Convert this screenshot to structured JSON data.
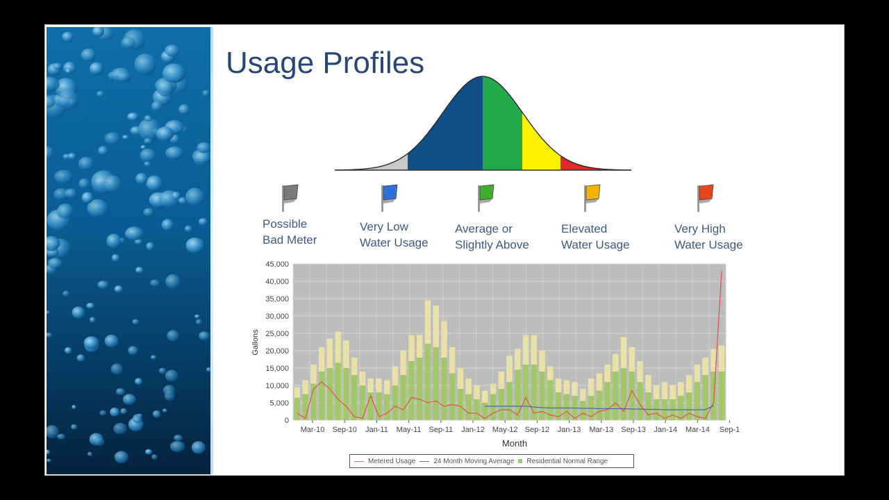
{
  "slide": {
    "title": "Usage Profiles",
    "flags": [
      {
        "line1": "Possible",
        "line2": "Bad Meter",
        "color": "#7a7a7a",
        "icon": "gray-flag-icon"
      },
      {
        "line1": "Very Low",
        "line2": "Water Usage",
        "color": "#2f6fd8",
        "icon": "blue-flag-icon"
      },
      {
        "line1": "Average or",
        "line2": "Slightly Above",
        "color": "#3fae2a",
        "icon": "green-flag-icon"
      },
      {
        "line1": "Elevated",
        "line2": "Water Usage",
        "color": "#f2b400",
        "icon": "yellow-flag-icon"
      },
      {
        "line1": "Very High",
        "line2": "Water Usage",
        "color": "#e8461c",
        "icon": "orange-flag-icon"
      }
    ],
    "bell_colors": [
      "#c8c8c8",
      "#0d4f86",
      "#22aa4a",
      "#fff200",
      "#e02a2a"
    ]
  },
  "chart_data": {
    "type": "bar",
    "ylabel": "Gallons",
    "xlabel": "Month",
    "ylim": [
      0,
      45000
    ],
    "y_ticks": [
      "0",
      "5,000",
      "10,000",
      "15,000",
      "20,000",
      "25,000",
      "30,000",
      "35,000",
      "40,000",
      "45,000"
    ],
    "x_ticks": [
      "Mar-10",
      "Sep-10",
      "Jan-11",
      "May-11",
      "Sep-11",
      "Jan-12",
      "May-12",
      "Sep-12",
      "Jan-13",
      "Mar-13",
      "Sep-13",
      "Jan-14",
      "Mar-14",
      "Sep-1"
    ],
    "grid": true,
    "series": [
      {
        "name": "Residential Normal Range",
        "low": [
          6500,
          7500,
          10500,
          14000,
          15000,
          16500,
          15000,
          13000,
          10000,
          8000,
          8000,
          7500,
          10000,
          13000,
          17000,
          18000,
          22000,
          21000,
          18000,
          13500,
          9000,
          7500,
          6000,
          5000,
          7500,
          9000,
          11000,
          14500,
          16000,
          16000,
          14000,
          11500,
          8000,
          7500,
          7000,
          5500,
          7000,
          8500,
          11000,
          14000,
          15000,
          14000,
          11000,
          8000,
          6000,
          6000,
          6000,
          7000,
          8000,
          11000,
          13000,
          14000,
          14000
        ],
        "high": [
          9500,
          11500,
          16000,
          21000,
          23500,
          25500,
          23000,
          18000,
          14000,
          12000,
          12000,
          11500,
          15500,
          20000,
          24500,
          24500,
          34500,
          33000,
          28500,
          21000,
          15000,
          12000,
          10000,
          8500,
          10500,
          14000,
          18500,
          20500,
          24500,
          24500,
          20000,
          15500,
          12000,
          11500,
          11000,
          9000,
          12000,
          13500,
          16000,
          19000,
          24000,
          21000,
          17000,
          13000,
          10000,
          11000,
          10000,
          11000,
          13000,
          16000,
          18000,
          20500,
          21500
        ]
      },
      {
        "name": "Metered Usage",
        "values": [
          2000,
          500,
          9000,
          11000,
          9000,
          6000,
          4000,
          1000,
          500,
          7000,
          1000,
          2000,
          4000,
          3000,
          6500,
          6000,
          5000,
          5500,
          4000,
          4500,
          4000,
          2000,
          2000,
          500,
          2000,
          3000,
          3000,
          1500,
          6500,
          2000,
          2500,
          1500,
          1000,
          2500,
          500,
          2000,
          1000,
          2500,
          3000,
          5000,
          2500,
          8500,
          4500,
          1500,
          2000,
          500,
          1500,
          500,
          2000,
          1000,
          500,
          5000,
          43000
        ]
      },
      {
        "name": "24 Month Moving Average",
        "start": 23,
        "values": [
          4000,
          4000,
          4000,
          4000,
          4000,
          4000,
          3800,
          3600,
          3500,
          3500,
          3500,
          3500,
          3400,
          3400,
          3300,
          3300,
          3300,
          3300,
          3200,
          3200,
          3100,
          3100,
          3000,
          3000,
          3000,
          3000,
          3000,
          3000,
          4200
        ]
      }
    ]
  },
  "legend": {
    "text1": "Metered Usage",
    "text2": "24 Month Moving Average",
    "text3": "Residential Normal Range",
    "color1": "#e36a6a",
    "color2": "#5b6fb0",
    "color3": "#9fc86a"
  }
}
